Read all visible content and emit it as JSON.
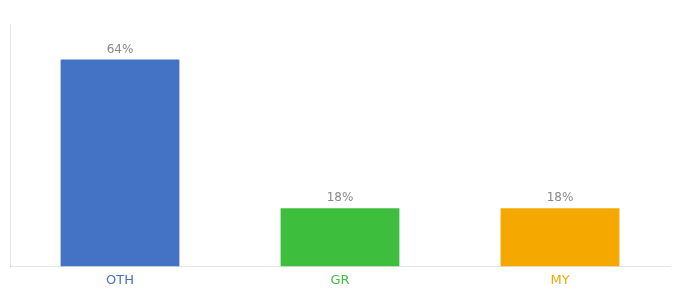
{
  "chart_data": {
    "type": "bar",
    "categories": [
      "OTH",
      "GR",
      "MY"
    ],
    "values": [
      64,
      18,
      18
    ],
    "value_labels": [
      "64%",
      "18%",
      "18%"
    ],
    "colors": [
      "#4472c4",
      "#3dbf3d",
      "#f5a800"
    ],
    "ylim": [
      0,
      75
    ],
    "grid": false,
    "data_labels": true,
    "tick_labels": "x"
  }
}
